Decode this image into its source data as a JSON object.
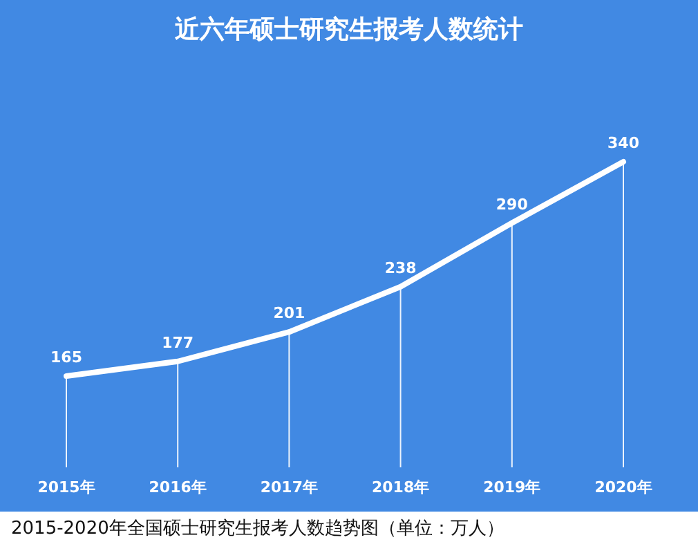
{
  "chart_data": {
    "type": "line",
    "title": "近六年硕士研究生报考人数统计",
    "categories": [
      "2015年",
      "2016年",
      "2017年",
      "2018年",
      "2019年",
      "2020年"
    ],
    "values": [
      165,
      177,
      201,
      238,
      290,
      340
    ],
    "color": "#ffffff",
    "data_labels": true,
    "grid": "x",
    "annotations": [
      "2015-2020年全国硕士研究生报考人数趋势图（单位：万人）"
    ]
  }
}
